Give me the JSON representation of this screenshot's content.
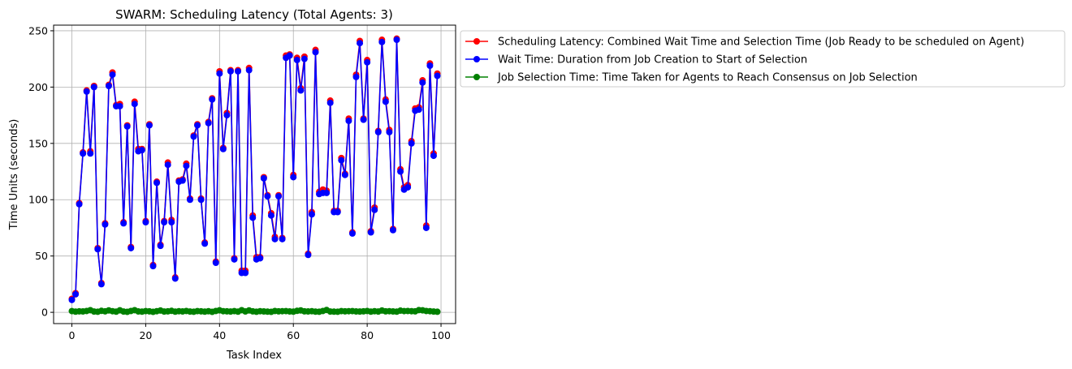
{
  "chart_data": {
    "type": "line",
    "title": "SWARM: Scheduling Latency (Total Agents: 3)",
    "xlabel": "Task Index",
    "ylabel": "Time Units (seconds)",
    "xlim": [
      -4.95,
      103.95
    ],
    "ylim": [
      -10,
      255
    ],
    "xticks": [
      0,
      20,
      40,
      60,
      80,
      100
    ],
    "yticks": [
      0,
      50,
      100,
      150,
      200,
      250
    ],
    "grid": true,
    "legend_position": "outside upper-right of plot area",
    "colors": {
      "latency": "#ff0000",
      "wait": "#0000ff",
      "selection": "#008000"
    },
    "series": [
      {
        "name": "Scheduling Latency: Combined Wait Time and Selection Time (Job Ready to be scheduled on Agent)",
        "color": "#ff0000",
        "values": [
          12,
          17,
          97,
          142,
          197,
          143,
          201,
          57,
          26,
          79,
          202,
          213,
          184,
          185,
          80,
          166,
          58,
          187,
          145,
          145,
          81,
          167,
          42,
          116,
          60,
          81,
          133,
          82,
          31,
          117,
          118,
          132,
          101,
          157,
          167,
          101,
          62,
          169,
          190,
          45,
          214,
          146,
          177,
          215,
          48,
          215,
          37,
          37,
          217,
          86,
          49,
          49,
          120,
          104,
          88,
          67,
          104,
          66,
          228,
          229,
          122,
          226,
          199,
          227,
          52,
          89,
          233,
          107,
          109,
          108,
          188,
          90,
          90,
          137,
          123,
          172,
          71,
          211,
          241,
          172,
          224,
          72,
          93,
          161,
          242,
          189,
          162,
          74,
          243,
          127,
          111,
          113,
          152,
          181,
          182,
          206,
          77,
          221,
          141,
          212
        ]
      },
      {
        "name": "Wait Time: Duration from Job Creation to Start of Selection",
        "color": "#0000ff",
        "values": [
          11,
          16,
          96,
          141,
          196,
          141,
          200,
          56,
          25,
          78,
          201,
          211,
          183,
          183,
          79,
          165,
          57,
          185,
          143,
          144,
          80,
          166,
          41,
          115,
          59,
          80,
          131,
          80,
          30,
          116,
          117,
          130,
          100,
          156,
          166,
          100,
          61,
          168,
          189,
          44,
          212,
          145,
          175,
          214,
          47,
          214,
          35,
          35,
          215,
          84,
          47,
          48,
          119,
          103,
          86,
          65,
          103,
          65,
          226,
          228,
          120,
          224,
          197,
          225,
          51,
          87,
          231,
          105,
          106,
          106,
          186,
          89,
          89,
          135,
          122,
          170,
          70,
          209,
          239,
          171,
          222,
          71,
          91,
          160,
          240,
          187,
          160,
          73,
          242,
          125,
          109,
          111,
          150,
          179,
          180,
          204,
          75,
          219,
          139,
          210
        ]
      },
      {
        "name": "Job Selection Time: Time Taken for Agents to Reach Consensus on Job Selection",
        "color": "#008000",
        "values": [
          1.1,
          0.6,
          0.9,
          0.8,
          1.2,
          1.9,
          0.7,
          0.5,
          1.3,
          0.9,
          1.7,
          1.0,
          0.6,
          1.8,
          0.7,
          0.4,
          1.2,
          1.9,
          0.8,
          0.6,
          1.1,
          0.9,
          0.4,
          1.0,
          1.6,
          0.7,
          0.9,
          1.3,
          0.6,
          1.0,
          0.8,
          1.2,
          0.7,
          0.5,
          1.1,
          0.9,
          0.6,
          1.0,
          0.4,
          1.2,
          1.8,
          1.0,
          0.9,
          0.7,
          1.1,
          0.6,
          1.9,
          0.8,
          1.7,
          0.9,
          0.5,
          1.0,
          0.8,
          0.6,
          0.4,
          1.2,
          0.9,
          1.0,
          1.1,
          0.8,
          0.6,
          1.3,
          1.7,
          0.9,
          0.8,
          1.0,
          0.6,
          0.5,
          1.2,
          2.1,
          0.7,
          0.6,
          0.5,
          1.1,
          0.9,
          1.0,
          1.1,
          0.8,
          0.7,
          0.9,
          1.2,
          0.6,
          1.0,
          0.7,
          1.6,
          0.9,
          1.0,
          0.8,
          0.6,
          1.5,
          1.1,
          1.2,
          1.0,
          0.9,
          2.0,
          1.8,
          1.2,
          1.0,
          0.7,
          0.5
        ]
      }
    ]
  }
}
